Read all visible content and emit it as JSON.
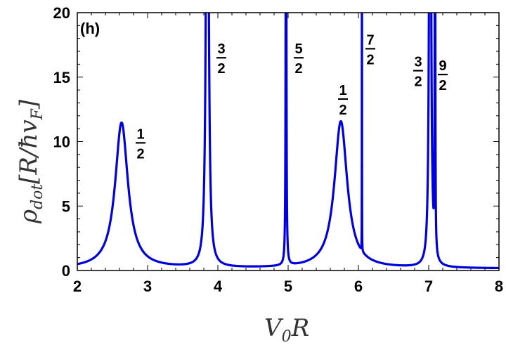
{
  "chart_data": {
    "type": "line",
    "panel_label": "(h)",
    "xlabel": {
      "main": "V",
      "sub": "0",
      "rest": "R"
    },
    "ylabel": {
      "main": "ρ",
      "sub": "dot",
      "rest": "[R/ħv",
      "sub2": "F",
      "close": "]"
    },
    "xlim": [
      2,
      8
    ],
    "ylim": [
      0,
      20
    ],
    "xticks": [
      2,
      3,
      4,
      5,
      6,
      7,
      8
    ],
    "yticks": [
      0,
      5,
      10,
      15,
      20
    ],
    "grid": false,
    "line_color": "#0000dd",
    "baseline": 0.15,
    "peaks": [
      {
        "x": 2.63,
        "height": 11.3,
        "width": 0.11
      },
      {
        "x": 3.85,
        "height": 60,
        "width": 0.016
      },
      {
        "x": 4.97,
        "height": 60,
        "width": 0.004
      },
      {
        "x": 5.75,
        "height": 11.4,
        "width": 0.11
      },
      {
        "x": 6.05,
        "height": 60,
        "width": 0.0006
      },
      {
        "x": 7.02,
        "height": 60,
        "width": 0.012
      },
      {
        "x": 7.09,
        "height": 60,
        "width": 0.003
      }
    ],
    "annotations": [
      {
        "num": "1",
        "den": "2",
        "x": 2.9,
        "y": 9.9
      },
      {
        "num": "3",
        "den": "2",
        "x": 4.05,
        "y": 16.5
      },
      {
        "num": "5",
        "den": "2",
        "x": 5.15,
        "y": 16.5
      },
      {
        "num": "1",
        "den": "2",
        "x": 5.78,
        "y": 13.3
      },
      {
        "num": "7",
        "den": "2",
        "x": 6.17,
        "y": 17.2
      },
      {
        "num": "3",
        "den": "2",
        "x": 6.85,
        "y": 15.5
      },
      {
        "num": "9",
        "den": "2",
        "x": 7.2,
        "y": 15.2
      }
    ]
  }
}
